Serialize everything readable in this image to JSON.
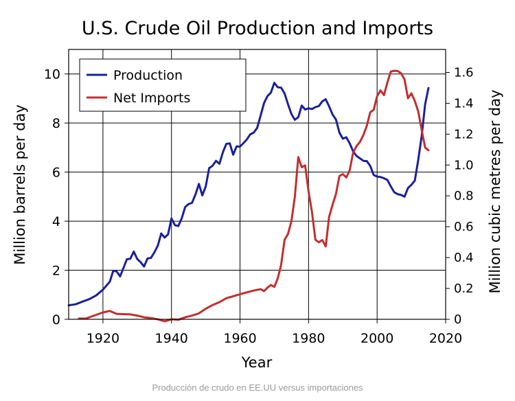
{
  "chart_data": {
    "type": "line",
    "title": "U.S. Crude Oil Production and Imports",
    "xlabel": "Year",
    "ylabel": "Million barrels per day",
    "y2label": "Million cubic metres per day",
    "xlim": [
      1910,
      2020
    ],
    "ylim": [
      0,
      11
    ],
    "y2lim": [
      0,
      1.749
    ],
    "x_ticks": [
      1920,
      1940,
      1960,
      1980,
      2000,
      2020
    ],
    "y_ticks": [
      0,
      2,
      4,
      6,
      8,
      10
    ],
    "y2_ticks": [
      "0",
      "0.2",
      "0.4",
      "0.6",
      "0.8",
      "1.0",
      "1.2",
      "1.4",
      "1.6"
    ],
    "grid": true,
    "legend_position": "top-left",
    "series": [
      {
        "name": "Production",
        "color": "#1a1f9c",
        "x": [
          1910,
          1912,
          1914,
          1916,
          1918,
          1920,
          1922,
          1923,
          1924,
          1925,
          1926,
          1927,
          1928,
          1929,
          1930,
          1931,
          1932,
          1933,
          1934,
          1935,
          1936,
          1937,
          1938,
          1939,
          1940,
          1941,
          1942,
          1943,
          1944,
          1945,
          1946,
          1947,
          1948,
          1949,
          1950,
          1951,
          1952,
          1953,
          1954,
          1955,
          1956,
          1957,
          1958,
          1959,
          1960,
          1961,
          1962,
          1963,
          1964,
          1965,
          1966,
          1967,
          1968,
          1969,
          1970,
          1971,
          1972,
          1973,
          1974,
          1975,
          1976,
          1977,
          1978,
          1979,
          1980,
          1981,
          1982,
          1983,
          1984,
          1985,
          1986,
          1987,
          1988,
          1989,
          1990,
          1991,
          1992,
          1993,
          1994,
          1995,
          1996,
          1997,
          1998,
          1999,
          2000,
          2001,
          2002,
          2003,
          2004,
          2005,
          2006,
          2007,
          2008,
          2009,
          2010,
          2011,
          2012,
          2013,
          2014,
          2015
        ],
        "values": [
          0.57,
          0.61,
          0.72,
          0.82,
          0.97,
          1.21,
          1.53,
          1.98,
          1.95,
          1.75,
          2.1,
          2.45,
          2.47,
          2.76,
          2.46,
          2.33,
          2.15,
          2.48,
          2.5,
          2.73,
          3.0,
          3.5,
          3.33,
          3.46,
          4.11,
          3.84,
          3.8,
          4.12,
          4.58,
          4.7,
          4.75,
          5.09,
          5.52,
          5.05,
          5.41,
          6.16,
          6.26,
          6.46,
          6.34,
          6.81,
          7.15,
          7.17,
          6.71,
          7.05,
          7.04,
          7.18,
          7.33,
          7.54,
          7.61,
          7.8,
          8.3,
          8.81,
          9.1,
          9.24,
          9.64,
          9.46,
          9.44,
          9.21,
          8.77,
          8.37,
          8.13,
          8.24,
          8.71,
          8.55,
          8.6,
          8.57,
          8.65,
          8.69,
          8.88,
          8.97,
          8.68,
          8.35,
          8.14,
          7.61,
          7.36,
          7.42,
          7.17,
          6.85,
          6.66,
          6.56,
          6.46,
          6.45,
          6.25,
          5.88,
          5.82,
          5.8,
          5.75,
          5.68,
          5.42,
          5.18,
          5.1,
          5.07,
          5.0,
          5.35,
          5.48,
          5.65,
          6.5,
          7.47,
          8.76,
          9.43
        ]
      },
      {
        "name": "Net Imports",
        "color": "#c42d2d",
        "x": [
          1913,
          1915,
          1920,
          1922,
          1924,
          1926,
          1928,
          1930,
          1932,
          1934,
          1936,
          1938,
          1940,
          1942,
          1944,
          1946,
          1948,
          1950,
          1952,
          1954,
          1956,
          1958,
          1960,
          1962,
          1964,
          1966,
          1967,
          1968,
          1969,
          1970,
          1971,
          1972,
          1973,
          1974,
          1975,
          1976,
          1977,
          1978,
          1979,
          1980,
          1981,
          1982,
          1983,
          1984,
          1985,
          1986,
          1987,
          1988,
          1989,
          1990,
          1991,
          1992,
          1993,
          1994,
          1995,
          1996,
          1997,
          1998,
          1999,
          2000,
          2001,
          2002,
          2003,
          2004,
          2005,
          2006,
          2007,
          2008,
          2009,
          2010,
          2011,
          2012,
          2013,
          2014,
          2015
        ],
        "values": [
          0.03,
          0.03,
          0.28,
          0.34,
          0.22,
          0.21,
          0.2,
          0.15,
          0.08,
          0.05,
          0.0,
          -0.08,
          0.0,
          -0.02,
          0.08,
          0.15,
          0.24,
          0.43,
          0.58,
          0.7,
          0.86,
          0.94,
          1.02,
          1.1,
          1.17,
          1.23,
          1.15,
          1.29,
          1.4,
          1.32,
          1.66,
          2.22,
          3.24,
          3.48,
          4.0,
          5.0,
          6.61,
          6.2,
          6.27,
          5.2,
          4.36,
          3.24,
          3.14,
          3.23,
          2.97,
          4.18,
          4.67,
          5.11,
          5.84,
          5.92,
          5.78,
          6.08,
          6.79,
          7.06,
          7.23,
          7.51,
          7.89,
          8.44,
          8.54,
          9.1,
          9.33,
          9.14,
          9.66,
          10.1,
          10.13,
          10.12,
          10.03,
          9.78,
          9.01,
          9.21,
          8.9,
          8.47,
          7.72,
          7.0,
          6.89
        ]
      }
    ]
  },
  "caption": "Producción de crudo en EE.UU versus importaciones"
}
